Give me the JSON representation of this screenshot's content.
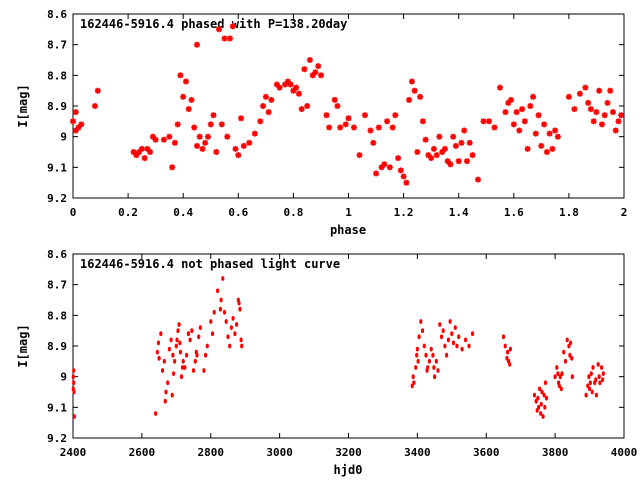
{
  "chart_data": [
    {
      "type": "scatter",
      "title": "162446-5916.4 phased with P=138.20day",
      "xlabel": "phase",
      "ylabel": "I[mag]",
      "xlim": [
        0,
        2
      ],
      "ylim": [
        9.2,
        8.6
      ],
      "y_inverted": true,
      "x_ticks": [
        "0",
        "0.2",
        "0.4",
        "0.6",
        "0.8",
        "1",
        "1.2",
        "1.4",
        "1.6",
        "1.8",
        "2"
      ],
      "y_ticks": [
        "8.6",
        "8.7",
        "8.8",
        "8.9",
        "9",
        "9.1",
        "9.2"
      ],
      "marker": "star",
      "color": "#ff0000",
      "series": [
        {
          "x": [
            0.0,
            0.01,
            0.01,
            0.02,
            0.03,
            0.08,
            0.09,
            0.22,
            0.23,
            0.24,
            0.25,
            0.26,
            0.27,
            0.28,
            0.29,
            0.3,
            0.33,
            0.35,
            0.36,
            0.37,
            0.38,
            0.39,
            0.4,
            0.41,
            0.42,
            0.43,
            0.44,
            0.45,
            0.45,
            0.46,
            0.47,
            0.48,
            0.49,
            0.5,
            0.51,
            0.52,
            0.53,
            0.54,
            0.55,
            0.56,
            0.57,
            0.58,
            0.59,
            0.6,
            0.61,
            0.62,
            0.64,
            0.66,
            0.68,
            0.69,
            0.7,
            0.71,
            0.72,
            0.74,
            0.75,
            0.77,
            0.78,
            0.79,
            0.8,
            0.81,
            0.82,
            0.83,
            0.84,
            0.85,
            0.86,
            0.87,
            0.88,
            0.89,
            0.9,
            0.92,
            0.93,
            0.95,
            0.96,
            0.97,
            0.99,
            1.0,
            1.02,
            1.04,
            1.06,
            1.08,
            1.09,
            1.1,
            1.11,
            1.12,
            1.13,
            1.14,
            1.15,
            1.16,
            1.17,
            1.18,
            1.19,
            1.2,
            1.21,
            1.22,
            1.23,
            1.24,
            1.25,
            1.26,
            1.27,
            1.28,
            1.29,
            1.3,
            1.31,
            1.32,
            1.33,
            1.34,
            1.35,
            1.36,
            1.37,
            1.38,
            1.39,
            1.4,
            1.41,
            1.42,
            1.43,
            1.44,
            1.45,
            1.47,
            1.49,
            1.51,
            1.53,
            1.55,
            1.57,
            1.58,
            1.59,
            1.6,
            1.61,
            1.62,
            1.63,
            1.64,
            1.65,
            1.66,
            1.67,
            1.68,
            1.69,
            1.7,
            1.71,
            1.72,
            1.73,
            1.74,
            1.75,
            1.76,
            1.8,
            1.82,
            1.84,
            1.86,
            1.87,
            1.88,
            1.89,
            1.9,
            1.91,
            1.92,
            1.93,
            1.94,
            1.95,
            1.96,
            1.97,
            1.98,
            1.99
          ],
          "y": [
            8.95,
            8.98,
            8.92,
            8.97,
            8.96,
            8.9,
            8.85,
            9.05,
            9.06,
            9.05,
            9.04,
            9.07,
            9.04,
            9.05,
            9.0,
            9.01,
            9.01,
            9.0,
            9.1,
            9.02,
            8.96,
            8.8,
            8.87,
            8.82,
            8.91,
            8.88,
            8.97,
            9.03,
            8.7,
            9.0,
            9.04,
            9.02,
            9.0,
            8.96,
            8.93,
            9.05,
            8.65,
            8.96,
            8.68,
            9.0,
            8.68,
            8.64,
            9.04,
            9.06,
            8.94,
            9.03,
            9.02,
            8.99,
            8.95,
            8.9,
            8.87,
            8.92,
            8.88,
            8.83,
            8.84,
            8.83,
            8.82,
            8.83,
            8.85,
            8.84,
            8.86,
            8.91,
            8.78,
            8.9,
            8.75,
            8.8,
            8.79,
            8.77,
            8.8,
            8.93,
            8.97,
            8.88,
            8.9,
            8.97,
            8.96,
            8.94,
            8.97,
            9.06,
            8.93,
            8.98,
            9.02,
            9.12,
            8.97,
            9.1,
            9.09,
            8.95,
            9.1,
            8.97,
            8.93,
            9.07,
            9.11,
            9.13,
            9.15,
            8.88,
            8.82,
            8.85,
            9.05,
            8.87,
            8.95,
            9.01,
            9.06,
            9.07,
            9.04,
            9.06,
            9.0,
            9.05,
            9.04,
            9.08,
            9.09,
            9.0,
            9.03,
            9.08,
            9.02,
            8.98,
            9.08,
            9.02,
            9.06,
            9.14,
            8.95,
            8.95,
            8.97,
            8.84,
            8.92,
            8.89,
            8.88,
            8.96,
            8.92,
            8.98,
            8.91,
            8.95,
            9.04,
            8.9,
            8.87,
            8.99,
            8.93,
            9.03,
            8.96,
            9.05,
            8.99,
            9.04,
            8.98,
            9.0,
            8.87,
            8.91,
            8.86,
            8.84,
            8.89,
            8.91,
            8.95,
            8.92,
            8.85,
            8.96,
            8.93,
            8.89,
            8.85,
            8.92,
            8.98,
            8.95,
            8.93
          ]
        }
      ]
    },
    {
      "type": "scatter",
      "title": "162446-5916.4 not phased light curve",
      "xlabel": "hjd0",
      "ylabel": "I[mag]",
      "xlim": [
        2400,
        4000
      ],
      "ylim": [
        9.2,
        8.6
      ],
      "y_inverted": true,
      "x_ticks": [
        "2400",
        "2600",
        "2800",
        "3000",
        "3200",
        "3400",
        "3600",
        "3800",
        "4000"
      ],
      "y_ticks": [
        "8.6",
        "8.7",
        "8.8",
        "8.9",
        "9",
        "9.1",
        "9.2"
      ],
      "marker": "dot",
      "color": "#ff0000",
      "series": [
        {
          "x": [
            2401,
            2401,
            2402,
            2402,
            2403,
            2404,
            2640,
            2645,
            2648,
            2650,
            2655,
            2660,
            2665,
            2668,
            2670,
            2675,
            2680,
            2685,
            2688,
            2690,
            2692,
            2695,
            2700,
            2702,
            2705,
            2708,
            2710,
            2712,
            2715,
            2718,
            2720,
            2725,
            2730,
            2735,
            2740,
            2745,
            2750,
            2755,
            2758,
            2760,
            2765,
            2770,
            2780,
            2785,
            2790,
            2800,
            2805,
            2810,
            2820,
            2828,
            2830,
            2835,
            2840,
            2845,
            2850,
            2855,
            2860,
            2865,
            2870,
            2875,
            2880,
            2882,
            2885,
            2888,
            2890,
            3385,
            3388,
            3390,
            3395,
            3398,
            3400,
            3402,
            3405,
            3410,
            3415,
            3420,
            3425,
            3428,
            3430,
            3435,
            3440,
            3445,
            3448,
            3450,
            3455,
            3460,
            3465,
            3470,
            3475,
            3480,
            3485,
            3490,
            3495,
            3500,
            3505,
            3510,
            3515,
            3520,
            3530,
            3540,
            3550,
            3560,
            3650,
            3655,
            3660,
            3662,
            3665,
            3668,
            3670,
            3740,
            3745,
            3748,
            3750,
            3752,
            3755,
            3758,
            3760,
            3762,
            3765,
            3768,
            3770,
            3772,
            3775,
            3800,
            3805,
            3808,
            3810,
            3812,
            3815,
            3818,
            3820,
            3825,
            3830,
            3835,
            3840,
            3843,
            3845,
            3848,
            3850,
            3890,
            3895,
            3898,
            3900,
            3902,
            3905,
            3908,
            3910,
            3915,
            3918,
            3920,
            3925,
            3928,
            3930,
            3935,
            3938,
            3940
          ],
          "y": [
            9.0,
            9.04,
            9.02,
            8.98,
            9.05,
            9.13,
            9.12,
            8.92,
            8.89,
            8.94,
            8.86,
            8.98,
            8.95,
            9.08,
            9.05,
            9.02,
            8.91,
            8.88,
            9.06,
            8.93,
            8.99,
            8.95,
            8.9,
            8.88,
            8.85,
            8.83,
            8.89,
            8.92,
            9.0,
            8.97,
            8.95,
            8.97,
            8.93,
            8.86,
            8.88,
            8.85,
            8.98,
            8.95,
            8.92,
            8.93,
            8.87,
            8.84,
            8.98,
            8.93,
            8.9,
            8.82,
            8.86,
            8.79,
            8.72,
            8.78,
            8.75,
            8.68,
            8.79,
            8.82,
            8.87,
            8.9,
            8.84,
            8.81,
            8.86,
            8.83,
            8.75,
            8.76,
            8.78,
            8.88,
            8.9,
            9.03,
            9.0,
            9.02,
            8.97,
            8.93,
            8.91,
            8.95,
            8.87,
            8.82,
            8.85,
            8.9,
            8.93,
            8.98,
            8.97,
            8.95,
            8.91,
            8.93,
            8.97,
            9.0,
            8.95,
            8.98,
            8.83,
            8.87,
            8.85,
            8.9,
            8.93,
            8.88,
            8.82,
            8.86,
            8.89,
            8.84,
            8.9,
            8.87,
            8.91,
            8.88,
            8.9,
            8.86,
            8.87,
            8.9,
            8.94,
            8.92,
            8.95,
            8.96,
            8.91,
            9.06,
            9.08,
            9.11,
            9.07,
            9.1,
            9.04,
            9.12,
            9.09,
            9.05,
            9.13,
            9.06,
            9.1,
            9.02,
            9.07,
            9.0,
            8.97,
            8.99,
            9.02,
            9.03,
            9.0,
            9.04,
            8.99,
            8.92,
            8.95,
            8.88,
            8.9,
            8.93,
            8.89,
            8.94,
            9.0,
            9.06,
            9.03,
            9.0,
            9.04,
            9.02,
            8.99,
            9.05,
            8.97,
            9.02,
            9.01,
            9.06,
            8.96,
            9.0,
            9.02,
            8.97,
            9.01,
            8.99
          ]
        }
      ]
    }
  ]
}
